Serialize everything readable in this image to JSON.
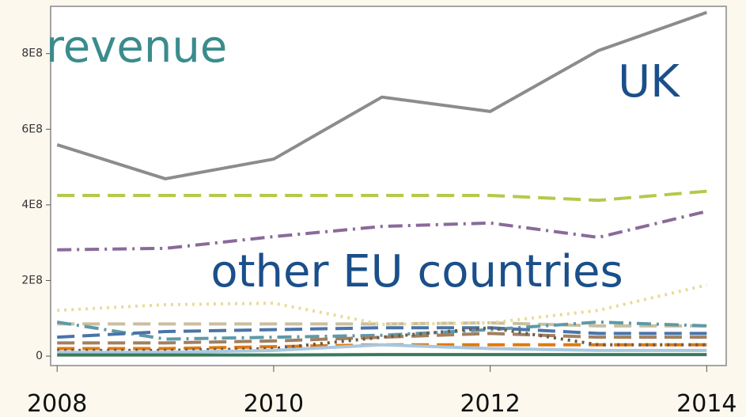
{
  "chart_data": {
    "type": "line",
    "x": [
      2008,
      2009,
      2010,
      2011,
      2012,
      2013,
      2014
    ],
    "xlim": [
      2007.94,
      2014.18
    ],
    "xticks": [
      2008,
      2010,
      2012,
      2014
    ],
    "ylim": [
      -25000000,
      925000000
    ],
    "yticks": [
      0,
      {
        "value": 200000000,
        "label": "2E8"
      },
      {
        "value": 400000000,
        "label": "4E8"
      },
      {
        "value": 600000000,
        "label": "6E8"
      },
      {
        "value": 800000000,
        "label": "8E8"
      }
    ],
    "annotations": [
      {
        "text": "revenue",
        "color": "#3b8c8c"
      },
      {
        "text": "UK",
        "color": "#1a4f8a"
      },
      {
        "text": "other EU countries",
        "color": "#1a4f8a"
      }
    ],
    "series": [
      {
        "color": "#c9bfa0",
        "dash": "dash",
        "values": [
          85000000,
          85000000,
          85000000,
          85000000,
          88000000,
          80000000,
          80000000
        ]
      },
      {
        "color": "#5d9aa8",
        "dash": "dashdot",
        "values": [
          90000000,
          45000000,
          50000000,
          55000000,
          70000000,
          90000000,
          80000000
        ]
      },
      {
        "color": "#4a74a8",
        "dash": "dash",
        "values": [
          50000000,
          65000000,
          70000000,
          75000000,
          75000000,
          60000000,
          60000000
        ]
      },
      {
        "color": "#a08060",
        "dash": "dash",
        "values": [
          35000000,
          35000000,
          40000000,
          50000000,
          60000000,
          50000000,
          50000000
        ]
      },
      {
        "color": "#e07a10",
        "dash": "dash",
        "values": [
          20000000,
          20000000,
          25000000,
          30000000,
          30000000,
          30000000,
          30000000
        ]
      },
      {
        "color": "#6e5a48",
        "dash": "dot",
        "values": [
          15000000,
          15000000,
          20000000,
          50000000,
          75000000,
          30000000,
          30000000
        ]
      },
      {
        "color": "#a8c8e0",
        "dash": "solid",
        "values": [
          10000000,
          10000000,
          15000000,
          30000000,
          20000000,
          15000000,
          15000000
        ]
      },
      {
        "color": "#3a7a5a",
        "dash": "solid",
        "values": [
          3000000,
          3000000,
          3000000,
          4000000,
          4000000,
          4000000,
          4000000
        ]
      },
      {
        "color": "#e8dc9a",
        "dash": "dot",
        "values": [
          121000000,
          136000000,
          140000000,
          84000000,
          88000000,
          121000000,
          188000000
        ]
      },
      {
        "color": "#8a6a9a",
        "dash": "dashdot",
        "values": [
          281000000,
          285000000,
          316000000,
          343000000,
          352000000,
          314000000,
          383000000
        ]
      },
      {
        "color": "#b5c94a",
        "dash": "dash",
        "values": [
          425000000,
          425000000,
          425000000,
          425000000,
          425000000,
          412000000,
          436000000
        ]
      },
      {
        "color": "#8c8c8c",
        "dash": "solid",
        "values": [
          559000000,
          469000000,
          521000000,
          685000000,
          647000000,
          808000000,
          909000000
        ]
      }
    ]
  }
}
